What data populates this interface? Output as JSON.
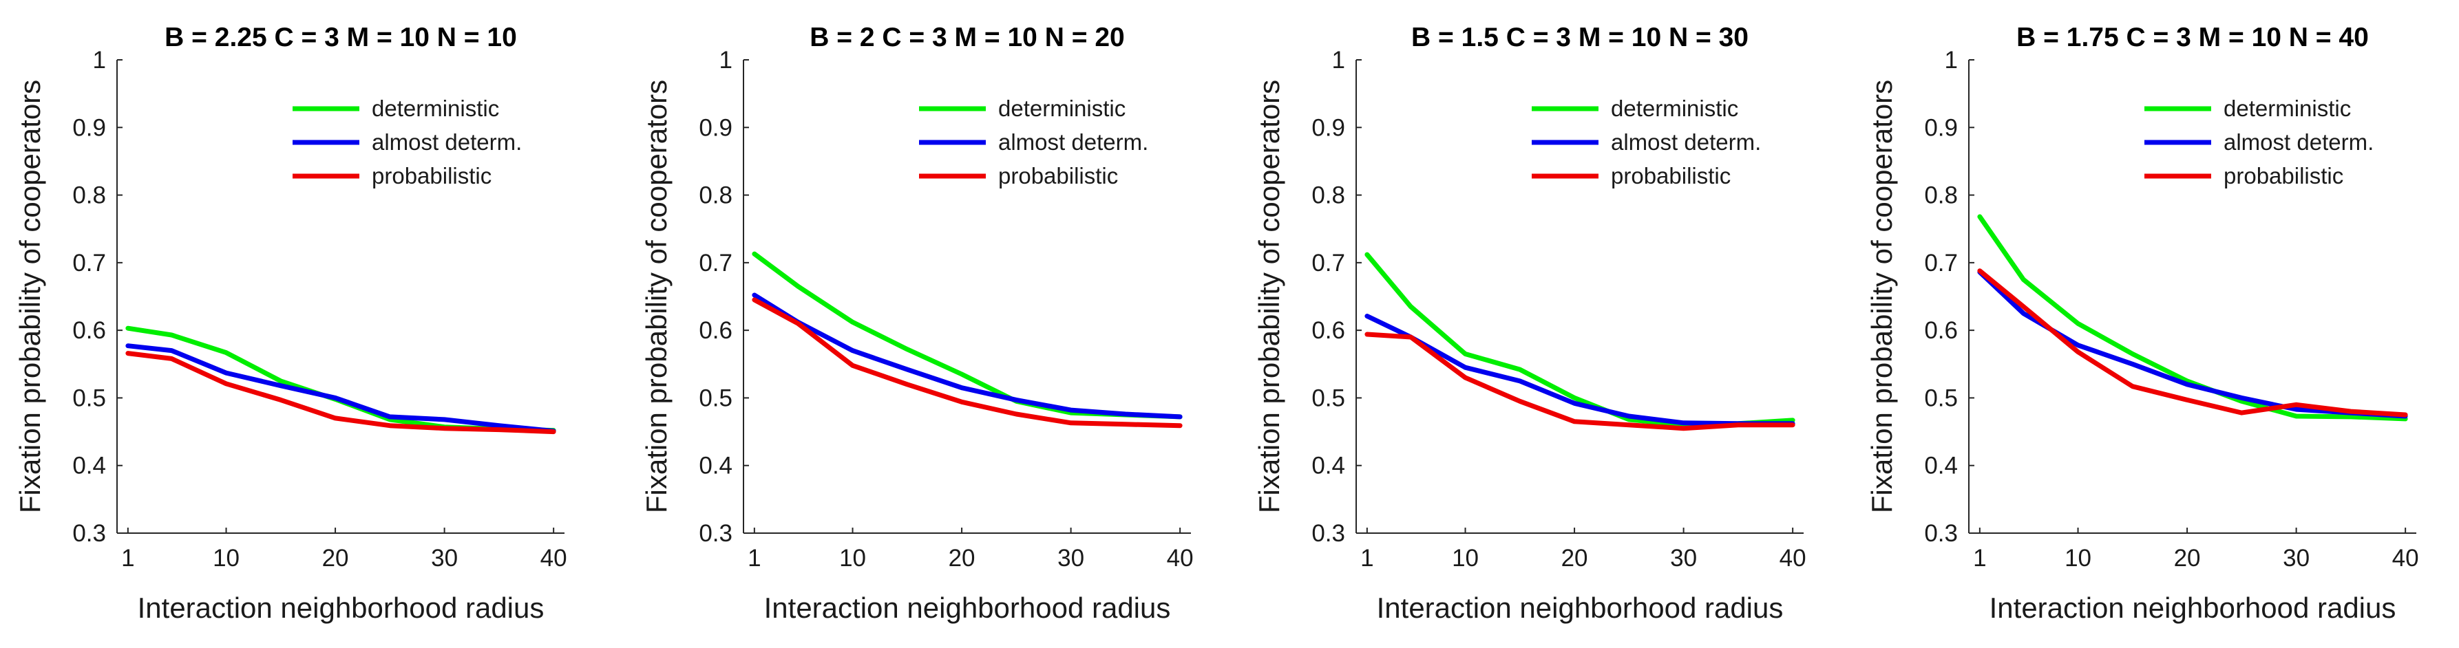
{
  "chart_data": [
    {
      "type": "line",
      "title": "B = 2.25   C = 3   M = 10   N = 10",
      "xlabel": "Interaction neighborhood radius",
      "ylabel": "Fixation probability of cooperators",
      "xlim": [
        0,
        41
      ],
      "ylim": [
        0.3,
        1
      ],
      "xticks": [
        "1",
        "10",
        "20",
        "30",
        "40"
      ],
      "yticks": [
        "0.3",
        "0.4",
        "0.5",
        "0.6",
        "0.7",
        "0.8",
        "0.9",
        "1"
      ],
      "legend_position": "top-right",
      "x": [
        1,
        5,
        10,
        15,
        20,
        25,
        30,
        35,
        40
      ],
      "series": [
        {
          "name": "deterministic",
          "color": "#00ee00",
          "values": [
            0.603,
            0.593,
            0.567,
            0.525,
            0.498,
            0.468,
            0.457,
            0.454,
            0.452
          ]
        },
        {
          "name": "almost determ.",
          "color": "#0000ee",
          "values": [
            0.577,
            0.57,
            0.537,
            0.518,
            0.5,
            0.472,
            0.468,
            0.459,
            0.451
          ]
        },
        {
          "name": "probabilistic",
          "color": "#ee0000",
          "values": [
            0.566,
            0.558,
            0.521,
            0.497,
            0.47,
            0.459,
            0.455,
            0.453,
            0.45
          ]
        }
      ]
    },
    {
      "type": "line",
      "title": "B = 2   C = 3   M = 10   N = 20",
      "xlabel": "Interaction neighborhood radius",
      "ylabel": "Fixation probability of cooperators",
      "xlim": [
        0,
        41
      ],
      "ylim": [
        0.3,
        1
      ],
      "xticks": [
        "1",
        "10",
        "20",
        "30",
        "40"
      ],
      "yticks": [
        "0.3",
        "0.4",
        "0.5",
        "0.6",
        "0.7",
        "0.8",
        "0.9",
        "1"
      ],
      "legend_position": "top-right",
      "x": [
        1,
        5,
        10,
        15,
        20,
        25,
        30,
        35,
        40
      ],
      "series": [
        {
          "name": "deterministic",
          "color": "#00ee00",
          "values": [
            0.713,
            0.665,
            0.612,
            0.572,
            0.535,
            0.495,
            0.478,
            0.475,
            0.472
          ]
        },
        {
          "name": "almost determ.",
          "color": "#0000ee",
          "values": [
            0.652,
            0.612,
            0.57,
            0.542,
            0.515,
            0.497,
            0.482,
            0.476,
            0.472
          ]
        },
        {
          "name": "probabilistic",
          "color": "#ee0000",
          "values": [
            0.645,
            0.61,
            0.548,
            0.52,
            0.494,
            0.476,
            0.463,
            0.461,
            0.459
          ]
        }
      ]
    },
    {
      "type": "line",
      "title": "B = 1.5   C = 3   M = 10   N = 30",
      "xlabel": "Interaction neighborhood radius",
      "ylabel": "Fixation probability of cooperators",
      "xlim": [
        0,
        41
      ],
      "ylim": [
        0.3,
        1
      ],
      "xticks": [
        "1",
        "10",
        "20",
        "30",
        "40"
      ],
      "yticks": [
        "0.3",
        "0.4",
        "0.5",
        "0.6",
        "0.7",
        "0.8",
        "0.9",
        "1"
      ],
      "legend_position": "top-right",
      "x": [
        1,
        5,
        10,
        15,
        20,
        25,
        30,
        35,
        40
      ],
      "series": [
        {
          "name": "deterministic",
          "color": "#00ee00",
          "values": [
            0.712,
            0.635,
            0.565,
            0.542,
            0.5,
            0.468,
            0.46,
            0.462,
            0.467
          ]
        },
        {
          "name": "almost determ.",
          "color": "#0000ee",
          "values": [
            0.621,
            0.59,
            0.545,
            0.525,
            0.492,
            0.473,
            0.463,
            0.462,
            0.462
          ]
        },
        {
          "name": "probabilistic",
          "color": "#ee0000",
          "values": [
            0.594,
            0.59,
            0.53,
            0.495,
            0.465,
            0.46,
            0.455,
            0.46,
            0.46
          ]
        }
      ]
    },
    {
      "type": "line",
      "title": "B = 1.75   C = 3   M = 10   N = 40",
      "xlabel": "Interaction neighborhood radius",
      "ylabel": "Fixation probability of cooperators",
      "xlim": [
        0,
        41
      ],
      "ylim": [
        0.3,
        1
      ],
      "xticks": [
        "1",
        "10",
        "20",
        "30",
        "40"
      ],
      "yticks": [
        "0.3",
        "0.4",
        "0.5",
        "0.6",
        "0.7",
        "0.8",
        "0.9",
        "1"
      ],
      "legend_position": "top-right",
      "x": [
        1,
        5,
        10,
        15,
        20,
        25,
        30,
        35,
        40
      ],
      "series": [
        {
          "name": "deterministic",
          "color": "#00ee00",
          "values": [
            0.768,
            0.675,
            0.61,
            0.565,
            0.525,
            0.495,
            0.473,
            0.472,
            0.469
          ]
        },
        {
          "name": "almost determ.",
          "color": "#0000ee",
          "values": [
            0.686,
            0.625,
            0.578,
            0.55,
            0.52,
            0.5,
            0.483,
            0.478,
            0.473
          ]
        },
        {
          "name": "probabilistic",
          "color": "#ee0000",
          "values": [
            0.688,
            0.635,
            0.568,
            0.517,
            0.497,
            0.478,
            0.49,
            0.48,
            0.475
          ]
        }
      ]
    }
  ]
}
